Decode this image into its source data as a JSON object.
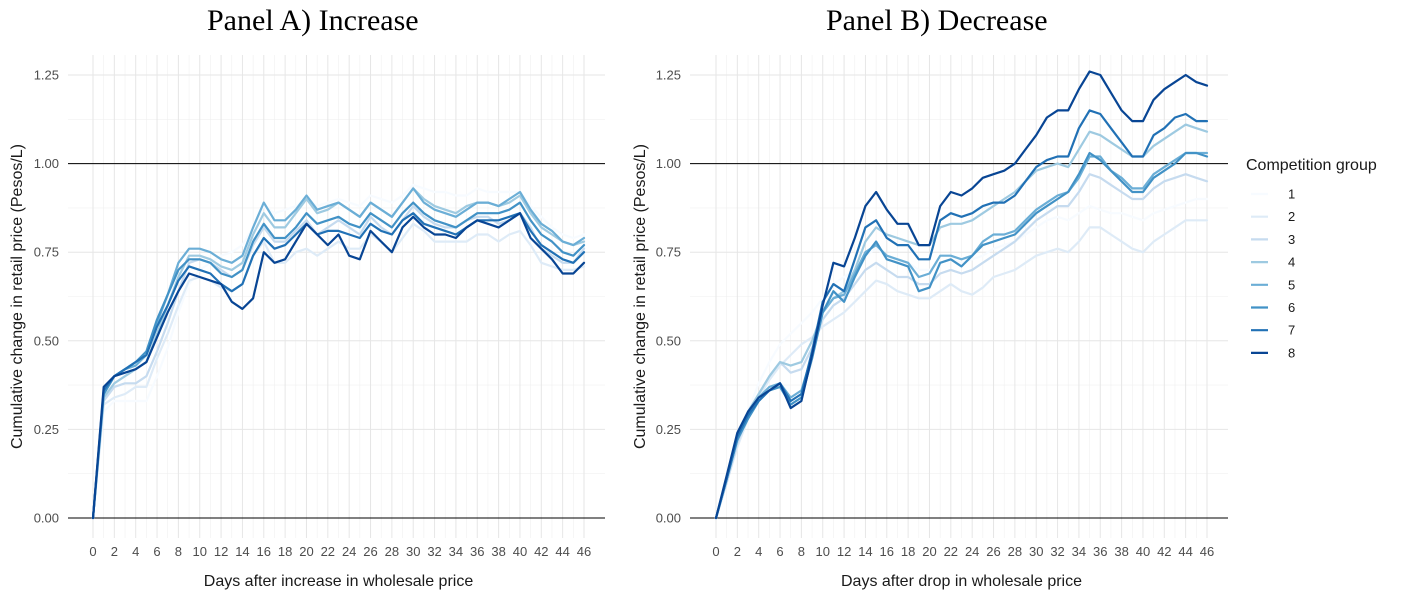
{
  "chart_data": [
    {
      "type": "line",
      "title": "Panel A) Increase",
      "xlabel": "Days after increase in wholesale price",
      "ylabel": "Cumulative change in retail price (Pesos/L)",
      "xlim": [
        0,
        46
      ],
      "ylim": [
        0,
        1.25
      ],
      "x_ticks": [
        0,
        2,
        4,
        6,
        8,
        10,
        12,
        14,
        16,
        18,
        20,
        22,
        24,
        26,
        28,
        30,
        32,
        34,
        36,
        38,
        40,
        42,
        44,
        46
      ],
      "y_ticks": [
        0,
        0.25,
        0.5,
        0.75,
        1.0,
        1.25
      ],
      "y_tick_labels": [
        "0.00",
        "0.25",
        "0.50",
        "0.75",
        "1.00",
        "1.25"
      ],
      "reference_line": 1.0,
      "grid": true,
      "x": [
        0,
        1,
        2,
        3,
        4,
        5,
        6,
        7,
        8,
        9,
        10,
        11,
        12,
        13,
        14,
        15,
        16,
        17,
        18,
        19,
        20,
        21,
        22,
        23,
        24,
        25,
        26,
        27,
        28,
        29,
        30,
        31,
        32,
        33,
        34,
        35,
        36,
        37,
        38,
        39,
        40,
        41,
        42,
        43,
        44,
        45,
        46
      ],
      "series": [
        {
          "name": "1",
          "values": [
            0.0,
            0.3,
            0.33,
            0.33,
            0.33,
            0.33,
            0.4,
            0.48,
            0.58,
            0.66,
            0.7,
            0.72,
            0.74,
            0.75,
            0.77,
            0.82,
            0.88,
            0.86,
            0.87,
            0.88,
            0.9,
            0.88,
            0.89,
            0.9,
            0.89,
            0.88,
            0.91,
            0.9,
            0.89,
            0.91,
            0.94,
            0.93,
            0.92,
            0.92,
            0.91,
            0.91,
            0.93,
            0.92,
            0.92,
            0.92,
            0.92,
            0.88,
            0.85,
            0.82,
            0.8,
            0.79,
            0.8
          ]
        },
        {
          "name": "2",
          "values": [
            0.0,
            0.32,
            0.34,
            0.35,
            0.37,
            0.37,
            0.45,
            0.52,
            0.6,
            0.67,
            0.68,
            0.67,
            0.65,
            0.64,
            0.66,
            0.74,
            0.78,
            0.72,
            0.72,
            0.75,
            0.76,
            0.74,
            0.76,
            0.78,
            0.76,
            0.76,
            0.8,
            0.78,
            0.75,
            0.79,
            0.83,
            0.81,
            0.78,
            0.78,
            0.78,
            0.78,
            0.8,
            0.8,
            0.78,
            0.8,
            0.81,
            0.77,
            0.72,
            0.71,
            0.7,
            0.7,
            0.71
          ]
        },
        {
          "name": "3",
          "values": [
            0.0,
            0.33,
            0.37,
            0.38,
            0.38,
            0.4,
            0.47,
            0.55,
            0.64,
            0.72,
            0.73,
            0.72,
            0.7,
            0.68,
            0.7,
            0.77,
            0.82,
            0.78,
            0.78,
            0.81,
            0.84,
            0.8,
            0.82,
            0.84,
            0.82,
            0.8,
            0.85,
            0.82,
            0.8,
            0.84,
            0.88,
            0.85,
            0.83,
            0.82,
            0.82,
            0.84,
            0.85,
            0.85,
            0.83,
            0.84,
            0.86,
            0.82,
            0.76,
            0.74,
            0.72,
            0.72,
            0.76
          ]
        },
        {
          "name": "4",
          "values": [
            0.0,
            0.34,
            0.38,
            0.4,
            0.42,
            0.44,
            0.52,
            0.6,
            0.68,
            0.74,
            0.74,
            0.73,
            0.71,
            0.7,
            0.72,
            0.8,
            0.86,
            0.82,
            0.82,
            0.86,
            0.9,
            0.86,
            0.87,
            0.89,
            0.87,
            0.85,
            0.89,
            0.87,
            0.85,
            0.89,
            0.93,
            0.9,
            0.88,
            0.87,
            0.86,
            0.88,
            0.89,
            0.89,
            0.88,
            0.89,
            0.91,
            0.86,
            0.82,
            0.8,
            0.78,
            0.77,
            0.78
          ]
        },
        {
          "name": "5",
          "values": [
            0.0,
            0.35,
            0.4,
            0.42,
            0.43,
            0.46,
            0.55,
            0.63,
            0.72,
            0.76,
            0.76,
            0.75,
            0.73,
            0.72,
            0.74,
            0.82,
            0.89,
            0.84,
            0.84,
            0.87,
            0.91,
            0.87,
            0.88,
            0.89,
            0.87,
            0.85,
            0.89,
            0.87,
            0.85,
            0.89,
            0.93,
            0.89,
            0.87,
            0.86,
            0.85,
            0.87,
            0.89,
            0.89,
            0.88,
            0.9,
            0.92,
            0.87,
            0.83,
            0.81,
            0.78,
            0.77,
            0.79
          ]
        },
        {
          "name": "6",
          "values": [
            0.0,
            0.35,
            0.4,
            0.42,
            0.44,
            0.47,
            0.56,
            0.63,
            0.7,
            0.73,
            0.73,
            0.72,
            0.69,
            0.68,
            0.7,
            0.78,
            0.83,
            0.79,
            0.79,
            0.82,
            0.86,
            0.83,
            0.84,
            0.85,
            0.83,
            0.82,
            0.86,
            0.84,
            0.82,
            0.86,
            0.89,
            0.86,
            0.84,
            0.83,
            0.82,
            0.84,
            0.86,
            0.86,
            0.86,
            0.87,
            0.89,
            0.84,
            0.8,
            0.78,
            0.75,
            0.74,
            0.77
          ]
        },
        {
          "name": "7",
          "values": [
            0.0,
            0.36,
            0.4,
            0.42,
            0.44,
            0.46,
            0.54,
            0.6,
            0.67,
            0.71,
            0.7,
            0.69,
            0.66,
            0.64,
            0.66,
            0.74,
            0.79,
            0.76,
            0.77,
            0.8,
            0.83,
            0.8,
            0.81,
            0.81,
            0.8,
            0.79,
            0.83,
            0.81,
            0.8,
            0.84,
            0.86,
            0.83,
            0.82,
            0.81,
            0.8,
            0.82,
            0.84,
            0.84,
            0.84,
            0.85,
            0.86,
            0.81,
            0.77,
            0.75,
            0.73,
            0.72,
            0.75
          ]
        },
        {
          "name": "8",
          "values": [
            0.0,
            0.37,
            0.4,
            0.41,
            0.42,
            0.44,
            0.51,
            0.58,
            0.64,
            0.69,
            0.68,
            0.67,
            0.66,
            0.61,
            0.59,
            0.62,
            0.75,
            0.72,
            0.73,
            0.78,
            0.83,
            0.8,
            0.77,
            0.8,
            0.74,
            0.73,
            0.81,
            0.78,
            0.75,
            0.82,
            0.85,
            0.82,
            0.8,
            0.8,
            0.79,
            0.82,
            0.84,
            0.83,
            0.82,
            0.84,
            0.86,
            0.79,
            0.76,
            0.73,
            0.69,
            0.69,
            0.72
          ]
        }
      ]
    },
    {
      "type": "line",
      "title": "Panel B) Decrease",
      "xlabel": "Days after drop in wholesale price",
      "ylabel": "Cumulative change in retail price (Pesos/L)",
      "xlim": [
        0,
        46
      ],
      "ylim": [
        0,
        1.25
      ],
      "x_ticks": [
        0,
        2,
        4,
        6,
        8,
        10,
        12,
        14,
        16,
        18,
        20,
        22,
        24,
        26,
        28,
        30,
        32,
        34,
        36,
        38,
        40,
        42,
        44,
        46
      ],
      "y_ticks": [
        0,
        0.25,
        0.5,
        0.75,
        1.0,
        1.25
      ],
      "y_tick_labels": [
        "0.00",
        "0.25",
        "0.50",
        "0.75",
        "1.00",
        "1.25"
      ],
      "reference_line": 1.0,
      "grid": true,
      "x": [
        0,
        1,
        2,
        3,
        4,
        5,
        6,
        7,
        8,
        9,
        10,
        11,
        12,
        13,
        14,
        15,
        16,
        17,
        18,
        19,
        20,
        21,
        22,
        23,
        24,
        25,
        26,
        27,
        28,
        29,
        30,
        31,
        32,
        33,
        34,
        35,
        36,
        37,
        38,
        39,
        40,
        41,
        42,
        43,
        44,
        45,
        46
      ],
      "series": [
        {
          "name": "1",
          "values": [
            0.0,
            0.1,
            0.2,
            0.3,
            0.38,
            0.44,
            0.49,
            0.52,
            0.55,
            0.58,
            0.62,
            0.66,
            0.68,
            0.7,
            0.74,
            0.76,
            0.74,
            0.72,
            0.72,
            0.7,
            0.7,
            0.72,
            0.73,
            0.72,
            0.73,
            0.74,
            0.76,
            0.77,
            0.78,
            0.8,
            0.82,
            0.84,
            0.85,
            0.84,
            0.86,
            0.88,
            0.87,
            0.86,
            0.86,
            0.85,
            0.84,
            0.86,
            0.87,
            0.88,
            0.89,
            0.9,
            0.9
          ]
        },
        {
          "name": "2",
          "values": [
            0.0,
            0.1,
            0.2,
            0.28,
            0.34,
            0.39,
            0.43,
            0.46,
            0.49,
            0.51,
            0.54,
            0.56,
            0.58,
            0.61,
            0.64,
            0.67,
            0.66,
            0.64,
            0.63,
            0.62,
            0.62,
            0.64,
            0.66,
            0.64,
            0.63,
            0.65,
            0.68,
            0.69,
            0.7,
            0.72,
            0.74,
            0.75,
            0.76,
            0.75,
            0.78,
            0.82,
            0.82,
            0.8,
            0.78,
            0.76,
            0.75,
            0.78,
            0.8,
            0.82,
            0.84,
            0.84,
            0.84
          ]
        },
        {
          "name": "3",
          "values": [
            0.0,
            0.1,
            0.21,
            0.29,
            0.35,
            0.4,
            0.44,
            0.41,
            0.42,
            0.48,
            0.56,
            0.6,
            0.62,
            0.66,
            0.7,
            0.72,
            0.7,
            0.68,
            0.68,
            0.66,
            0.66,
            0.69,
            0.7,
            0.69,
            0.7,
            0.72,
            0.74,
            0.76,
            0.78,
            0.81,
            0.84,
            0.86,
            0.88,
            0.88,
            0.92,
            0.97,
            0.96,
            0.94,
            0.92,
            0.9,
            0.9,
            0.93,
            0.95,
            0.96,
            0.97,
            0.96,
            0.95
          ]
        },
        {
          "name": "4",
          "values": [
            0.0,
            0.11,
            0.22,
            0.3,
            0.35,
            0.4,
            0.44,
            0.43,
            0.44,
            0.5,
            0.58,
            0.62,
            0.64,
            0.7,
            0.78,
            0.82,
            0.8,
            0.79,
            0.78,
            0.77,
            0.77,
            0.82,
            0.83,
            0.83,
            0.84,
            0.86,
            0.88,
            0.9,
            0.92,
            0.95,
            0.98,
            0.99,
            1.0,
            0.99,
            1.04,
            1.09,
            1.08,
            1.06,
            1.04,
            1.02,
            1.02,
            1.05,
            1.07,
            1.09,
            1.11,
            1.1,
            1.09
          ]
        },
        {
          "name": "5",
          "values": [
            0.0,
            0.11,
            0.22,
            0.29,
            0.34,
            0.37,
            0.38,
            0.34,
            0.36,
            0.46,
            0.58,
            0.62,
            0.63,
            0.69,
            0.75,
            0.77,
            0.74,
            0.73,
            0.72,
            0.68,
            0.69,
            0.74,
            0.74,
            0.73,
            0.74,
            0.78,
            0.8,
            0.8,
            0.81,
            0.84,
            0.87,
            0.89,
            0.91,
            0.92,
            0.96,
            1.02,
            1.02,
            0.98,
            0.96,
            0.93,
            0.93,
            0.97,
            0.99,
            1.01,
            1.03,
            1.03,
            1.03
          ]
        },
        {
          "name": "6",
          "values": [
            0.0,
            0.11,
            0.22,
            0.28,
            0.33,
            0.36,
            0.37,
            0.32,
            0.34,
            0.45,
            0.58,
            0.64,
            0.61,
            0.68,
            0.74,
            0.78,
            0.73,
            0.72,
            0.71,
            0.64,
            0.65,
            0.72,
            0.73,
            0.71,
            0.74,
            0.77,
            0.78,
            0.79,
            0.8,
            0.83,
            0.86,
            0.88,
            0.9,
            0.92,
            0.97,
            1.03,
            1.01,
            0.98,
            0.95,
            0.92,
            0.92,
            0.96,
            0.98,
            1.0,
            1.03,
            1.03,
            1.02
          ]
        },
        {
          "name": "7",
          "values": [
            0.0,
            0.11,
            0.23,
            0.29,
            0.33,
            0.36,
            0.38,
            0.33,
            0.35,
            0.47,
            0.61,
            0.66,
            0.64,
            0.73,
            0.82,
            0.84,
            0.79,
            0.77,
            0.77,
            0.73,
            0.73,
            0.84,
            0.86,
            0.85,
            0.86,
            0.88,
            0.89,
            0.89,
            0.91,
            0.95,
            0.99,
            1.01,
            1.02,
            1.02,
            1.1,
            1.15,
            1.14,
            1.1,
            1.06,
            1.02,
            1.02,
            1.08,
            1.1,
            1.13,
            1.14,
            1.12,
            1.12
          ]
        },
        {
          "name": "8",
          "values": [
            0.0,
            0.12,
            0.24,
            0.3,
            0.34,
            0.36,
            0.38,
            0.31,
            0.33,
            0.46,
            0.6,
            0.72,
            0.71,
            0.79,
            0.88,
            0.92,
            0.87,
            0.83,
            0.83,
            0.77,
            0.77,
            0.88,
            0.92,
            0.91,
            0.93,
            0.96,
            0.97,
            0.98,
            1.0,
            1.04,
            1.08,
            1.13,
            1.15,
            1.15,
            1.21,
            1.26,
            1.25,
            1.2,
            1.15,
            1.12,
            1.12,
            1.18,
            1.21,
            1.23,
            1.25,
            1.23,
            1.22
          ]
        }
      ]
    }
  ],
  "legend": {
    "title": "Competition group",
    "placement": "right",
    "items": [
      {
        "label": "1",
        "color": "#f7fbff"
      },
      {
        "label": "2",
        "color": "#deebf7"
      },
      {
        "label": "3",
        "color": "#c6dbef"
      },
      {
        "label": "4",
        "color": "#9ecae1"
      },
      {
        "label": "5",
        "color": "#6baed6"
      },
      {
        "label": "6",
        "color": "#4292c6"
      },
      {
        "label": "7",
        "color": "#2171b5"
      },
      {
        "label": "8",
        "color": "#084594"
      }
    ]
  }
}
